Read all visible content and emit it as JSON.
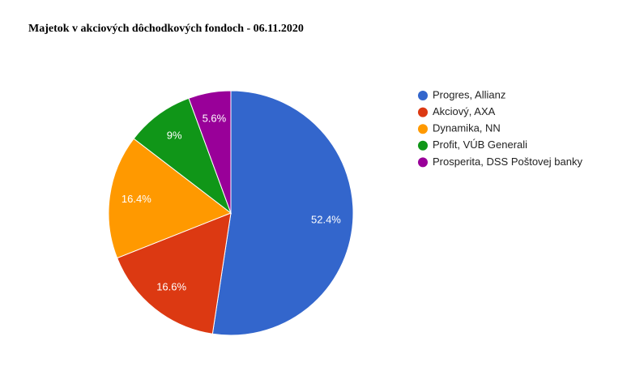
{
  "chart_data": {
    "type": "pie",
    "title": "Majetok v akciových dôchodkových fondoch - 06.11.2020",
    "categories": [
      "Progres, Allianz",
      "Akciový, AXA",
      "Dynamika, NN",
      "Profit, VÚB Generali",
      "Prosperita, DSS Poštovej banky"
    ],
    "values": [
      52.4,
      16.6,
      16.4,
      9,
      5.6
    ],
    "value_labels": [
      "52.4%",
      "16.6%",
      "16.4%",
      "9%",
      "5.6%"
    ],
    "colors": [
      "#3366cc",
      "#dc3912",
      "#ff9900",
      "#109618",
      "#990099"
    ],
    "legend": "right"
  }
}
